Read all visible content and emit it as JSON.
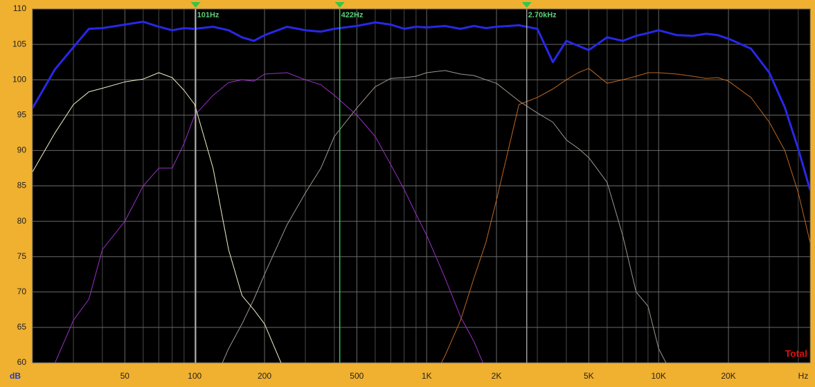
{
  "chart_data": {
    "type": "line",
    "log_x": true,
    "grid": true,
    "xlabel": "Hz",
    "ylabel": "dB",
    "xlim": [
      20,
      45000
    ],
    "ylim": [
      60,
      110
    ],
    "yticks": [
      60,
      65,
      70,
      75,
      80,
      85,
      90,
      95,
      100,
      105,
      110
    ],
    "xticks": [
      50,
      100,
      200,
      500,
      {
        "value": 1000,
        "label": "1K"
      },
      {
        "value": 2000,
        "label": "2K"
      },
      {
        "value": 5000,
        "label": "5K"
      },
      {
        "value": 10000,
        "label": "10K"
      },
      {
        "value": 20000,
        "label": "20K"
      }
    ],
    "xminor": [
      30,
      40,
      60,
      70,
      80,
      90,
      300,
      400,
      600,
      700,
      800,
      900,
      3000,
      4000,
      6000,
      7000,
      8000,
      9000,
      30000,
      40000
    ],
    "legend_position": "lower right",
    "markers": [
      {
        "x": 101,
        "label": "101Hz",
        "color": "#c8c8c8"
      },
      {
        "x": 422,
        "label": "422Hz",
        "color": "#2ec84a"
      },
      {
        "x": 2700,
        "label": "2.70kHz",
        "color": "#a0a0a0"
      }
    ],
    "x": [
      20,
      25,
      30,
      35,
      40,
      50,
      60,
      70,
      80,
      90,
      100,
      120,
      140,
      160,
      180,
      200,
      250,
      300,
      350,
      400,
      500,
      600,
      700,
      800,
      900,
      1000,
      1200,
      1400,
      1600,
      1800,
      2000,
      2500,
      3000,
      3500,
      4000,
      4500,
      5000,
      6000,
      7000,
      8000,
      9000,
      10000,
      12000,
      14000,
      16000,
      18000,
      20000,
      25000,
      30000,
      35000,
      40000,
      45000
    ],
    "series": [
      {
        "name": "Total",
        "color": "#2828e8",
        "width": 3,
        "values": [
          96,
          101.5,
          104.6,
          107.2,
          107.3,
          107.8,
          108.2,
          107.5,
          107,
          107.3,
          107.2,
          107.5,
          107,
          106,
          105.5,
          106.3,
          107.5,
          107,
          106.8,
          107.2,
          107.6,
          108.1,
          107.8,
          107.2,
          107.5,
          107.4,
          107.6,
          107.2,
          107.6,
          107.3,
          107.5,
          107.7,
          107.2,
          102.5,
          105.5,
          104.8,
          104.2,
          106,
          105.5,
          106.2,
          106.6,
          107,
          106.3,
          106.2,
          106.5,
          106.3,
          105.8,
          104.4,
          101,
          96.1,
          90.2,
          84.4
        ]
      },
      {
        "color": "#f4f0c8",
        "width": 1,
        "values": [
          87,
          92.5,
          96.5,
          98.3,
          98.8,
          99.7,
          100.1,
          101,
          100.3,
          98.5,
          96.5,
          87.5,
          76,
          69.5,
          67.5,
          65.5,
          58,
          null,
          null,
          null,
          null,
          null,
          null,
          null,
          null,
          null,
          null,
          null,
          null,
          null,
          null,
          null,
          null,
          null,
          null,
          null,
          null,
          null,
          null,
          null,
          null,
          null,
          null,
          null,
          null,
          null,
          null,
          null,
          null,
          null,
          null,
          null
        ]
      },
      {
        "color": "#9a30c8",
        "width": 1,
        "values": [
          null,
          60,
          66,
          69,
          76,
          80,
          85,
          87.5,
          87.5,
          91,
          95,
          97.8,
          99.6,
          100,
          99.8,
          100.8,
          101,
          100,
          99.3,
          97.8,
          95,
          92,
          88,
          84.5,
          81,
          78,
          72,
          66.5,
          63,
          59,
          56,
          null,
          null,
          null,
          null,
          null,
          null,
          null,
          null,
          null,
          null,
          null,
          null,
          null,
          null,
          null,
          null,
          null,
          null,
          null,
          null,
          null
        ]
      },
      {
        "color": "#a09890",
        "width": 1,
        "values": [
          null,
          null,
          null,
          null,
          null,
          null,
          null,
          null,
          null,
          null,
          null,
          57,
          62,
          65.5,
          69,
          72.5,
          79.5,
          84,
          87.5,
          92,
          96,
          99,
          100.2,
          100.3,
          100.5,
          101,
          101.3,
          100.8,
          100.6,
          100,
          99.5,
          97,
          95.3,
          94,
          91.5,
          90.3,
          89,
          85.5,
          78,
          70,
          68,
          62,
          57,
          null,
          null,
          null,
          null,
          null,
          null,
          null,
          null,
          null
        ]
      },
      {
        "color": "#c06820",
        "width": 1,
        "values": [
          null,
          null,
          null,
          null,
          null,
          null,
          null,
          null,
          null,
          null,
          null,
          null,
          null,
          null,
          null,
          null,
          null,
          null,
          null,
          null,
          null,
          null,
          null,
          null,
          null,
          56,
          61,
          66,
          72,
          77,
          83,
          96.5,
          97.5,
          98.7,
          100,
          101,
          101.6,
          99.5,
          100,
          100.5,
          101,
          101,
          100.8,
          100.5,
          100.2,
          100.3,
          99.8,
          97.5,
          94,
          90,
          84,
          77
        ]
      }
    ]
  }
}
